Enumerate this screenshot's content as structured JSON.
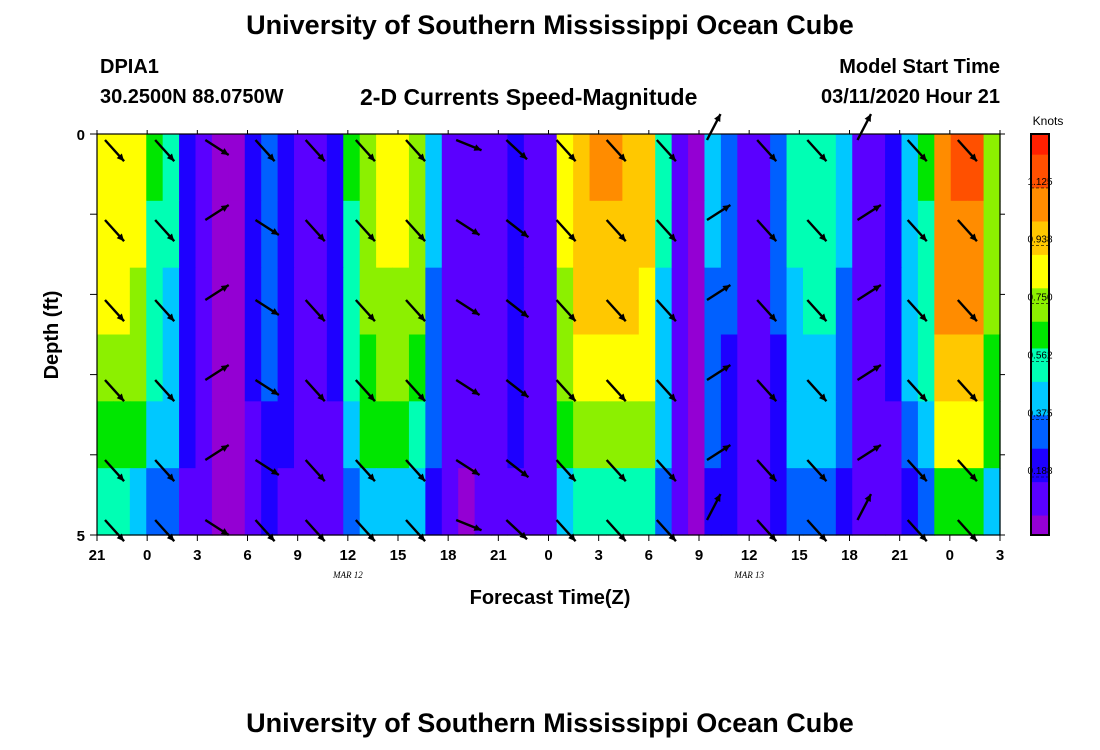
{
  "header": {
    "title": "University of Southern Mississippi Ocean Cube",
    "station": "DPIA1",
    "coordinates": "30.2500N 88.0750W",
    "plot_title": "2-D Currents Speed-Magnitude",
    "model_start_label": "Model Start Time",
    "model_start_value": "03/11/2020 Hour 21"
  },
  "footer": {
    "title": "University of Southern Mississippi Ocean Cube"
  },
  "colors": {
    "scale": [
      "#9400d3",
      "#5a00ff",
      "#1e00ff",
      "#0060ff",
      "#00c8ff",
      "#00ffb4",
      "#00e600",
      "#8cf000",
      "#ffff00",
      "#ffc800",
      "#ff8c00",
      "#ff5000",
      "#ff2000"
    ],
    "arrow": "#000000",
    "frame": "#000000"
  },
  "chart_data": {
    "type": "heatmap",
    "title": "2-D Currents Speed-Magnitude",
    "xlabel": "Forecast Time(Z)",
    "ylabel": "Depth (ft)",
    "x_tick_labels": [
      "21",
      "0",
      "3",
      "6",
      "9",
      "12",
      "15",
      "18",
      "21",
      "0",
      "3",
      "6",
      "9",
      "12",
      "15",
      "18",
      "21",
      "0",
      "3"
    ],
    "x_day_labels": [
      {
        "after_tick": 5,
        "text": "MAR 12"
      },
      {
        "after_tick": 13,
        "text": "MAR 13"
      }
    ],
    "y_tick_labels": [
      "0",
      "5"
    ],
    "ylim": [
      0,
      5
    ],
    "colorbar": {
      "unit": "Knots",
      "ticks": [
        "1.125",
        "0.938",
        "0.750",
        "0.562",
        "0.375",
        "0.188"
      ],
      "range": [
        0,
        1.3
      ]
    },
    "depth_levels": 5,
    "times": [
      0,
      1,
      2,
      3,
      4,
      5,
      6,
      7,
      8,
      9,
      10,
      11,
      12,
      13,
      14,
      15,
      16,
      17,
      18,
      19,
      20,
      21,
      22,
      23,
      24,
      25,
      26,
      27,
      28,
      29,
      30,
      31,
      32,
      33,
      34,
      35,
      36,
      37,
      38,
      39,
      40,
      41,
      42,
      43,
      44,
      45,
      46,
      47,
      48,
      49,
      50,
      51,
      52,
      53,
      54
    ],
    "speed_profile_knots": [
      0.9,
      0.9,
      0.85,
      0.6,
      0.5,
      0.25,
      0.15,
      0.05,
      0.05,
      0.2,
      0.35,
      0.25,
      0.15,
      0.15,
      0.2,
      0.6,
      0.8,
      0.85,
      0.85,
      0.75,
      0.4,
      0.12,
      0.08,
      0.1,
      0.15,
      0.25,
      0.12,
      0.15,
      0.85,
      1.0,
      1.05,
      1.05,
      1.0,
      0.95,
      0.5,
      0.1,
      0.05,
      0.4,
      0.3,
      0.1,
      0.1,
      0.3,
      0.5,
      0.55,
      0.55,
      0.4,
      0.15,
      0.1,
      0.2,
      0.45,
      0.6,
      1.1,
      1.15,
      1.15,
      0.8
    ],
    "depth_factor": [
      1.0,
      0.98,
      0.94,
      0.86,
      0.76,
      0.55
    ],
    "arrow_time_columns": [
      0,
      1,
      2,
      3,
      4,
      5,
      6,
      7,
      8,
      9,
      10,
      11,
      12,
      13,
      14,
      15,
      16,
      17
    ],
    "arrow_direction_deg": [
      135,
      135,
      60,
      120,
      135,
      135,
      135,
      120,
      125,
      135,
      135,
      135,
      60,
      135,
      135,
      60,
      135,
      135
    ],
    "arrow_alt_direction_deg": [
      135,
      135,
      120,
      135,
      135,
      135,
      135,
      110,
      130,
      135,
      135,
      135,
      30,
      135,
      135,
      30,
      135,
      135
    ]
  }
}
